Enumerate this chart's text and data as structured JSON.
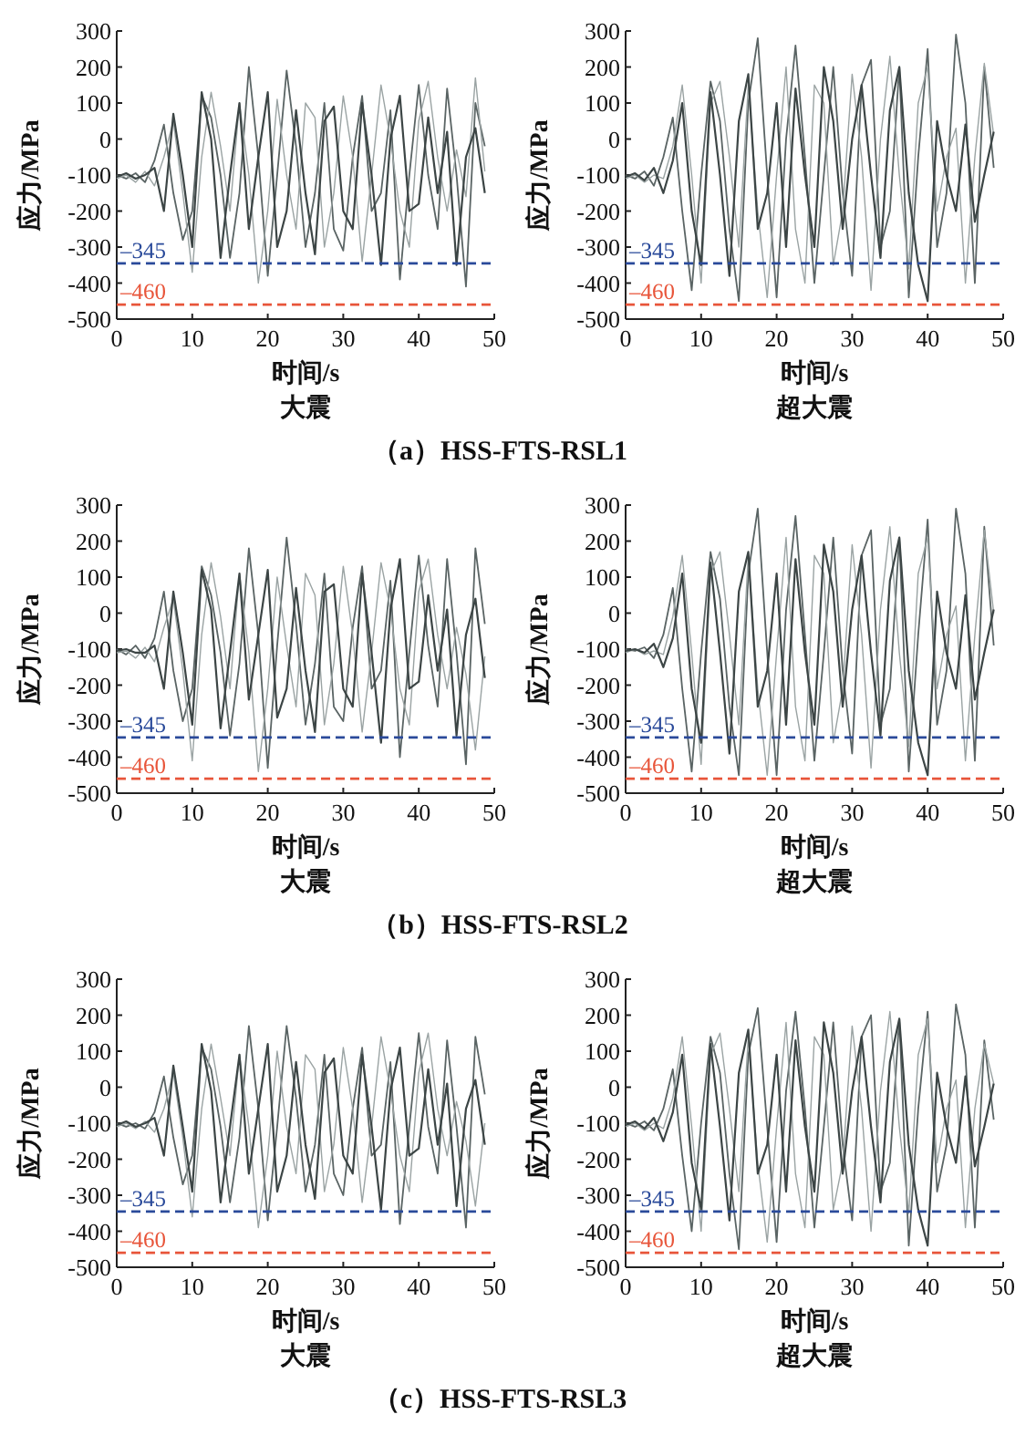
{
  "chart_data": [
    {
      "type": "line",
      "ylabel": "应力/MPa",
      "xlabel": "时间/s",
      "subtitle": "大震",
      "annotations": [
        "（a）HSS-FTS-RSL1"
      ],
      "xlim": [
        0,
        50
      ],
      "ylim": [
        -500,
        300
      ],
      "xticks": [
        0,
        10,
        20,
        30,
        40,
        50
      ],
      "yticks": [
        -500,
        -400,
        -300,
        -200,
        -100,
        0,
        100,
        200,
        300
      ],
      "x": [
        0,
        1.25,
        2.5,
        3.75,
        5,
        6.25,
        7.5,
        8.75,
        10,
        11.25,
        12.5,
        13.75,
        15,
        16.25,
        17.5,
        18.75,
        20,
        21.25,
        22.5,
        23.75,
        25,
        26.25,
        27.5,
        28.75,
        30,
        31.25,
        32.5,
        33.75,
        35,
        36.25,
        37.5,
        38.75,
        40,
        41.25,
        42.5,
        43.75,
        45,
        46.25,
        47.5,
        48.75
      ],
      "ref_lines": [
        {
          "axis": "y",
          "value": -345,
          "label": "–345",
          "color": "#2a4a9a",
          "line_style": "dashed"
        },
        {
          "axis": "y",
          "value": -460,
          "label": "–460",
          "color": "#e8553a",
          "line_style": "dashed"
        }
      ],
      "series": [
        {
          "color": "#5a6464",
          "values": [
            -100,
            -110,
            -95,
            -120,
            -60,
            40,
            -150,
            -280,
            -200,
            120,
            60,
            -100,
            -330,
            -150,
            200,
            -50,
            -380,
            -100,
            190,
            -20,
            -300,
            -150,
            100,
            -250,
            -310,
            -50,
            120,
            -200,
            -150,
            80,
            -390,
            -100,
            150,
            -100,
            -250,
            140,
            -100,
            -410,
            100,
            -20
          ]
        },
        {
          "color": "#9aa3a3",
          "values": [
            -110,
            -100,
            -120,
            -90,
            -130,
            -50,
            50,
            -150,
            -370,
            -50,
            130,
            -20,
            -200,
            100,
            -100,
            -400,
            -200,
            110,
            -100,
            -250,
            100,
            60,
            -300,
            -150,
            120,
            -50,
            -340,
            -100,
            150,
            0,
            -200,
            -300,
            50,
            160,
            -50,
            -200,
            -30,
            -160,
            170,
            -90
          ]
        },
        {
          "color": "#3c4545",
          "values": [
            -105,
            -95,
            -110,
            -100,
            -80,
            -200,
            70,
            -100,
            -300,
            130,
            0,
            -330,
            -100,
            100,
            -250,
            -50,
            130,
            -300,
            -200,
            80,
            -150,
            -320,
            50,
            90,
            -200,
            -250,
            100,
            -100,
            -350,
            0,
            120,
            -200,
            -180,
            60,
            -150,
            20,
            -350,
            -50,
            30,
            -150
          ]
        }
      ]
    },
    {
      "type": "line",
      "ylabel": "应力/MPa",
      "xlabel": "时间/s",
      "subtitle": "超大震",
      "xlim": [
        0,
        50
      ],
      "ylim": [
        -500,
        300
      ],
      "xticks": [
        0,
        10,
        20,
        30,
        40,
        50
      ],
      "yticks": [
        -500,
        -400,
        -300,
        -200,
        -100,
        0,
        100,
        200,
        300
      ],
      "x": [
        0,
        1.25,
        2.5,
        3.75,
        5,
        6.25,
        7.5,
        8.75,
        10,
        11.25,
        12.5,
        13.75,
        15,
        16.25,
        17.5,
        18.75,
        20,
        21.25,
        22.5,
        23.75,
        25,
        26.25,
        27.5,
        28.75,
        30,
        31.25,
        32.5,
        33.75,
        35,
        36.25,
        37.5,
        38.75,
        40,
        41.25,
        42.5,
        43.75,
        45,
        46.25,
        47.5,
        48.75
      ],
      "ref_lines": [
        {
          "axis": "y",
          "value": -345,
          "label": "–345",
          "color": "#2a4a9a",
          "line_style": "dashed"
        },
        {
          "axis": "y",
          "value": -460,
          "label": "–460",
          "color": "#e8553a",
          "line_style": "dashed"
        }
      ],
      "series": [
        {
          "color": "#5a6464",
          "values": [
            -100,
            -110,
            -90,
            -130,
            -50,
            60,
            -200,
            -420,
            -100,
            160,
            50,
            -250,
            -450,
            100,
            280,
            -100,
            -440,
            0,
            260,
            -50,
            -400,
            -100,
            200,
            -150,
            -380,
            150,
            220,
            -300,
            -200,
            200,
            -440,
            -50,
            250,
            -300,
            -150,
            290,
            100,
            -400,
            200,
            -80
          ]
        },
        {
          "color": "#9aa3a3",
          "values": [
            -110,
            -100,
            -120,
            -100,
            -110,
            -20,
            150,
            -100,
            -400,
            100,
            160,
            -50,
            -300,
            150,
            -200,
            -440,
            -100,
            200,
            -250,
            -400,
            150,
            100,
            -350,
            -200,
            180,
            -50,
            -420,
            0,
            230,
            -100,
            -360,
            100,
            200,
            -200,
            -50,
            30,
            -400,
            -50,
            210,
            10
          ]
        },
        {
          "color": "#3c4545",
          "values": [
            -105,
            -95,
            -115,
            -80,
            -150,
            -60,
            100,
            -200,
            -350,
            130,
            -100,
            -380,
            50,
            180,
            -250,
            -150,
            100,
            -300,
            140,
            -100,
            -300,
            200,
            50,
            -250,
            0,
            150,
            -100,
            -330,
            80,
            200,
            -150,
            -350,
            -450,
            50,
            -100,
            -200,
            40,
            -230,
            -100,
            20
          ]
        }
      ]
    },
    {
      "type": "line",
      "ylabel": "应力/MPa",
      "xlabel": "时间/s",
      "subtitle": "大震",
      "annotations": [
        "（b）HSS-FTS-RSL2"
      ],
      "xlim": [
        0,
        50
      ],
      "ylim": [
        -500,
        300
      ],
      "xticks": [
        0,
        10,
        20,
        30,
        40,
        50
      ],
      "yticks": [
        -500,
        -400,
        -300,
        -200,
        -100,
        0,
        100,
        200,
        300
      ],
      "x": [
        0,
        1.25,
        2.5,
        3.75,
        5,
        6.25,
        7.5,
        8.75,
        10,
        11.25,
        12.5,
        13.75,
        15,
        16.25,
        17.5,
        18.75,
        20,
        21.25,
        22.5,
        23.75,
        25,
        26.25,
        27.5,
        28.75,
        30,
        31.25,
        32.5,
        33.75,
        35,
        36.25,
        37.5,
        38.75,
        40,
        41.25,
        42.5,
        43.75,
        45,
        46.25,
        47.5,
        48.75
      ],
      "ref_lines": [
        {
          "axis": "y",
          "value": -345,
          "label": "–345",
          "color": "#2a4a9a",
          "line_style": "dashed"
        },
        {
          "axis": "y",
          "value": -460,
          "label": "–460",
          "color": "#e8553a",
          "line_style": "dashed"
        }
      ],
      "series": [
        {
          "color": "#5a6464",
          "values": [
            -100,
            -115,
            -90,
            -125,
            -70,
            60,
            -160,
            -300,
            -210,
            130,
            50,
            -110,
            -340,
            -140,
            180,
            -60,
            -430,
            -90,
            210,
            -30,
            -310,
            -140,
            110,
            -260,
            -300,
            -40,
            130,
            -210,
            -160,
            90,
            -400,
            -110,
            160,
            -90,
            -260,
            150,
            -110,
            -420,
            180,
            -30
          ]
        },
        {
          "color": "#9aa3a3",
          "values": [
            -110,
            -105,
            -125,
            -95,
            -135,
            -40,
            40,
            -160,
            -410,
            -60,
            140,
            -10,
            -210,
            110,
            -110,
            -440,
            -210,
            100,
            -90,
            -260,
            110,
            50,
            -310,
            -140,
            130,
            -60,
            -330,
            -110,
            140,
            10,
            -210,
            -310,
            60,
            150,
            -60,
            -210,
            -40,
            -170,
            -380,
            -120
          ]
        },
        {
          "color": "#3c4545",
          "values": [
            -105,
            -100,
            -110,
            -110,
            -90,
            -210,
            60,
            -110,
            -310,
            120,
            10,
            -320,
            -110,
            110,
            -240,
            -60,
            120,
            -290,
            -210,
            70,
            -160,
            -330,
            60,
            80,
            -210,
            -260,
            110,
            -110,
            -360,
            10,
            150,
            -210,
            -190,
            50,
            -160,
            10,
            -340,
            -60,
            40,
            -180
          ]
        }
      ]
    },
    {
      "type": "line",
      "ylabel": "应力/MPa",
      "xlabel": "时间/s",
      "subtitle": "超大震",
      "xlim": [
        0,
        50
      ],
      "ylim": [
        -500,
        300
      ],
      "xticks": [
        0,
        10,
        20,
        30,
        40,
        50
      ],
      "yticks": [
        -500,
        -400,
        -300,
        -200,
        -100,
        0,
        100,
        200,
        300
      ],
      "x": [
        0,
        1.25,
        2.5,
        3.75,
        5,
        6.25,
        7.5,
        8.75,
        10,
        11.25,
        12.5,
        13.75,
        15,
        16.25,
        17.5,
        18.75,
        20,
        21.25,
        22.5,
        23.75,
        25,
        26.25,
        27.5,
        28.75,
        30,
        31.25,
        32.5,
        33.75,
        35,
        36.25,
        37.5,
        38.75,
        40,
        41.25,
        42.5,
        43.75,
        45,
        46.25,
        47.5,
        48.75
      ],
      "ref_lines": [
        {
          "axis": "y",
          "value": -345,
          "label": "–345",
          "color": "#2a4a9a",
          "line_style": "dashed"
        },
        {
          "axis": "y",
          "value": -460,
          "label": "–460",
          "color": "#e8553a",
          "line_style": "dashed"
        }
      ],
      "series": [
        {
          "color": "#5a6464",
          "values": [
            -100,
            -105,
            -95,
            -125,
            -60,
            70,
            -210,
            -440,
            -110,
            170,
            40,
            -260,
            -450,
            110,
            290,
            -110,
            -450,
            10,
            270,
            -60,
            -410,
            -110,
            210,
            -160,
            -390,
            160,
            230,
            -310,
            -210,
            210,
            -440,
            -60,
            260,
            -310,
            -160,
            290,
            110,
            -410,
            240,
            -90
          ]
        },
        {
          "color": "#9aa3a3",
          "values": [
            -110,
            -100,
            -115,
            -105,
            -115,
            -10,
            160,
            -110,
            -420,
            110,
            170,
            -60,
            -310,
            160,
            -210,
            -450,
            -110,
            210,
            -260,
            -410,
            160,
            110,
            -360,
            -210,
            190,
            -60,
            -430,
            10,
            240,
            -110,
            -370,
            110,
            210,
            -210,
            -60,
            20,
            -410,
            -60,
            230,
            0
          ]
        },
        {
          "color": "#3c4545",
          "values": [
            -105,
            -100,
            -110,
            -85,
            -150,
            -70,
            110,
            -210,
            -360,
            140,
            -110,
            -390,
            60,
            170,
            -260,
            -160,
            110,
            -310,
            150,
            -110,
            -310,
            190,
            60,
            -260,
            10,
            160,
            -110,
            -340,
            90,
            210,
            -160,
            -360,
            -450,
            60,
            -110,
            -210,
            50,
            -240,
            -110,
            10
          ]
        }
      ]
    },
    {
      "type": "line",
      "ylabel": "应力/MPa",
      "xlabel": "时间/s",
      "subtitle": "大震",
      "annotations": [
        "（c）HSS-FTS-RSL3"
      ],
      "xlim": [
        0,
        50
      ],
      "ylim": [
        -500,
        300
      ],
      "xticks": [
        0,
        10,
        20,
        30,
        40,
        50
      ],
      "yticks": [
        -500,
        -400,
        -300,
        -200,
        -100,
        0,
        100,
        200,
        300
      ],
      "x": [
        0,
        1.25,
        2.5,
        3.75,
        5,
        6.25,
        7.5,
        8.75,
        10,
        11.25,
        12.5,
        13.75,
        15,
        16.25,
        17.5,
        18.75,
        20,
        21.25,
        22.5,
        23.75,
        25,
        26.25,
        27.5,
        28.75,
        30,
        31.25,
        32.5,
        33.75,
        35,
        36.25,
        37.5,
        38.75,
        40,
        41.25,
        42.5,
        43.75,
        45,
        46.25,
        47.5,
        48.75
      ],
      "ref_lines": [
        {
          "axis": "y",
          "value": -345,
          "label": "–345",
          "color": "#2a4a9a",
          "line_style": "dashed"
        },
        {
          "axis": "y",
          "value": -460,
          "label": "–460",
          "color": "#e8553a",
          "line_style": "dashed"
        }
      ],
      "series": [
        {
          "color": "#5a6464",
          "values": [
            -100,
            -110,
            -100,
            -115,
            -70,
            30,
            -140,
            -270,
            -190,
            110,
            50,
            -110,
            -320,
            -140,
            170,
            -60,
            -370,
            -110,
            170,
            -30,
            -290,
            -160,
            90,
            -240,
            -300,
            -60,
            110,
            -190,
            -160,
            70,
            -380,
            -110,
            150,
            -110,
            -240,
            130,
            -110,
            -390,
            140,
            -20
          ]
        },
        {
          "color": "#9aa3a3",
          "values": [
            -110,
            -100,
            -115,
            -95,
            -125,
            -60,
            40,
            -140,
            -360,
            -60,
            120,
            -30,
            -190,
            90,
            -110,
            -390,
            -190,
            100,
            -110,
            -240,
            90,
            50,
            -290,
            -160,
            110,
            -60,
            -320,
            -110,
            140,
            -10,
            -190,
            -290,
            40,
            150,
            -60,
            -190,
            -40,
            -150,
            -330,
            -100
          ]
        },
        {
          "color": "#3c4545",
          "values": [
            -105,
            -95,
            -110,
            -100,
            -85,
            -190,
            60,
            -110,
            -290,
            120,
            -10,
            -320,
            -110,
            90,
            -240,
            -60,
            120,
            -290,
            -190,
            70,
            -160,
            -310,
            40,
            80,
            -190,
            -240,
            90,
            -110,
            -340,
            -10,
            110,
            -190,
            -170,
            50,
            -160,
            10,
            -330,
            -60,
            20,
            -160
          ]
        }
      ]
    },
    {
      "type": "line",
      "ylabel": "应力/MPa",
      "xlabel": "时间/s",
      "subtitle": "超大震",
      "xlim": [
        0,
        50
      ],
      "ylim": [
        -500,
        300
      ],
      "xticks": [
        0,
        10,
        20,
        30,
        40,
        50
      ],
      "yticks": [
        -500,
        -400,
        -300,
        -200,
        -100,
        0,
        100,
        200,
        300
      ],
      "x": [
        0,
        1.25,
        2.5,
        3.75,
        5,
        6.25,
        7.5,
        8.75,
        10,
        11.25,
        12.5,
        13.75,
        15,
        16.25,
        17.5,
        18.75,
        20,
        21.25,
        22.5,
        23.75,
        25,
        26.25,
        27.5,
        28.75,
        30,
        31.25,
        32.5,
        33.75,
        35,
        36.25,
        37.5,
        38.75,
        40,
        41.25,
        42.5,
        43.75,
        45,
        46.25,
        47.5,
        48.75
      ],
      "ref_lines": [
        {
          "axis": "y",
          "value": -345,
          "label": "–345",
          "color": "#2a4a9a",
          "line_style": "dashed"
        },
        {
          "axis": "y",
          "value": -460,
          "label": "–460",
          "color": "#e8553a",
          "line_style": "dashed"
        }
      ],
      "series": [
        {
          "color": "#5a6464",
          "values": [
            -100,
            -110,
            -95,
            -120,
            -60,
            50,
            -190,
            -400,
            -100,
            140,
            40,
            -240,
            -450,
            90,
            220,
            -110,
            -430,
            -10,
            210,
            -60,
            -390,
            -110,
            180,
            -160,
            -370,
            140,
            200,
            -290,
            -210,
            190,
            -440,
            -60,
            210,
            -290,
            -160,
            230,
            90,
            -390,
            130,
            -90
          ]
        },
        {
          "color": "#9aa3a3",
          "values": [
            -110,
            -100,
            -120,
            -100,
            -115,
            -30,
            140,
            -110,
            -400,
            90,
            150,
            -60,
            -290,
            140,
            -210,
            -430,
            -110,
            180,
            -240,
            -390,
            140,
            90,
            -340,
            -210,
            170,
            -60,
            -400,
            -10,
            210,
            -110,
            -350,
            90,
            190,
            -210,
            -60,
            20,
            -390,
            -60,
            120,
            10
          ]
        },
        {
          "color": "#3c4545",
          "values": [
            -105,
            -95,
            -115,
            -85,
            -150,
            -70,
            90,
            -210,
            -340,
            120,
            -110,
            -370,
            40,
            160,
            -240,
            -160,
            90,
            -290,
            130,
            -110,
            -290,
            180,
            40,
            -240,
            -10,
            140,
            -110,
            -320,
            70,
            190,
            -160,
            -340,
            -440,
            40,
            -110,
            -210,
            30,
            -220,
            -110,
            10
          ]
        }
      ]
    }
  ]
}
